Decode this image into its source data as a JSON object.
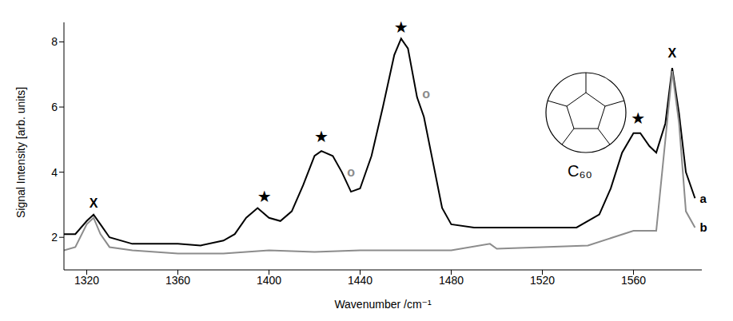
{
  "chart_data": {
    "type": "line",
    "title": "C₆₀",
    "x_label": "Wavenumber /cm⁻¹",
    "y_label": "Signal Intensity [arb. units]",
    "xlim": [
      1310,
      1590
    ],
    "xticks": [
      1320,
      1360,
      1400,
      1440,
      1480,
      1520,
      1560
    ],
    "ylim": [
      1,
      8.6
    ],
    "yticks": [
      2,
      4,
      6,
      8
    ],
    "grid": false,
    "series": [
      {
        "name": "a",
        "color": "#000000",
        "x": [
          1310,
          1315,
          1320,
          1323,
          1326,
          1330,
          1340,
          1350,
          1360,
          1370,
          1380,
          1385,
          1390,
          1395,
          1400,
          1405,
          1410,
          1415,
          1420,
          1423,
          1428,
          1432,
          1436,
          1440,
          1445,
          1450,
          1455,
          1458,
          1461,
          1465,
          1468,
          1472,
          1476,
          1480,
          1490,
          1500,
          1520,
          1535,
          1545,
          1550,
          1555,
          1560,
          1563,
          1567,
          1570,
          1574,
          1577,
          1580,
          1583,
          1587
        ],
        "values": [
          2.1,
          2.1,
          2.5,
          2.7,
          2.4,
          2.0,
          1.8,
          1.8,
          1.8,
          1.75,
          1.9,
          2.1,
          2.6,
          2.9,
          2.6,
          2.5,
          2.8,
          3.6,
          4.5,
          4.65,
          4.5,
          4.0,
          3.4,
          3.5,
          4.5,
          6.0,
          7.6,
          8.1,
          7.8,
          6.3,
          5.7,
          4.3,
          2.9,
          2.4,
          2.3,
          2.3,
          2.3,
          2.3,
          2.7,
          3.5,
          4.6,
          5.2,
          5.2,
          4.8,
          4.6,
          5.5,
          7.2,
          5.8,
          4.0,
          3.2
        ]
      },
      {
        "name": "b",
        "color": "#8c8c8c",
        "x": [
          1310,
          1315,
          1320,
          1323,
          1326,
          1330,
          1340,
          1360,
          1380,
          1400,
          1420,
          1440,
          1460,
          1480,
          1497,
          1500,
          1520,
          1540,
          1560,
          1570,
          1574,
          1577,
          1580,
          1583,
          1587
        ],
        "values": [
          1.6,
          1.7,
          2.4,
          2.6,
          2.1,
          1.7,
          1.6,
          1.5,
          1.5,
          1.6,
          1.55,
          1.6,
          1.6,
          1.6,
          1.8,
          1.65,
          1.7,
          1.75,
          2.2,
          2.2,
          5.0,
          7.1,
          5.5,
          2.8,
          2.3
        ]
      }
    ],
    "annotations": [
      {
        "text": "X",
        "x": 1323,
        "y": 3.05,
        "color": "#000000"
      },
      {
        "text": "★",
        "x": 1398,
        "y": 3.25,
        "color": "#000000"
      },
      {
        "text": "★",
        "x": 1423,
        "y": 5.1,
        "color": "#000000"
      },
      {
        "text": "★",
        "x": 1458,
        "y": 8.45,
        "color": "#000000"
      },
      {
        "text": "★",
        "x": 1562,
        "y": 5.65,
        "color": "#000000"
      },
      {
        "text": "o",
        "x": 1436,
        "y": 4.0,
        "color": "#8c8c8c"
      },
      {
        "text": "o",
        "x": 1469,
        "y": 6.4,
        "color": "#8c8c8c"
      },
      {
        "text": "X",
        "x": 1577,
        "y": 7.65,
        "color": "#000000"
      }
    ]
  }
}
